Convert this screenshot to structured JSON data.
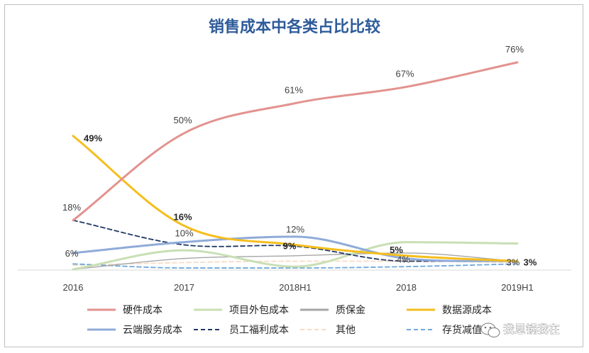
{
  "chart_data": {
    "type": "line",
    "title": "销售成本中各类占比比较",
    "categories": [
      "2016",
      "2017",
      "2018H1",
      "2018",
      "2019H1"
    ],
    "xlabel": "",
    "ylabel": "",
    "ylim": [
      0,
      0.8
    ],
    "grid": false,
    "legend_position": "bottom",
    "series": [
      {
        "name": "硬件成本",
        "values": [
          0.18,
          0.5,
          0.61,
          0.67,
          0.76
        ],
        "color": "#e3928f",
        "dash": "solid",
        "labels": [
          "18%",
          "50%",
          "61%",
          "67%",
          "76%"
        ],
        "bold": false
      },
      {
        "name": "项目外包成本",
        "values": [
          0.0,
          0.07,
          0.01,
          0.1,
          0.095
        ],
        "color": "#c8dfb4",
        "dash": "solid",
        "labels": null,
        "bold": false
      },
      {
        "name": "质保金",
        "values": [
          0.0,
          0.04,
          0.05,
          0.06,
          0.03
        ],
        "color": "#a6a6a6",
        "dash": "solid",
        "labels": null,
        "bold": false
      },
      {
        "name": "数据源成本",
        "values": [
          0.49,
          0.16,
          0.09,
          0.05,
          0.03
        ],
        "color": "#f5be1d",
        "dash": "solid",
        "labels": [
          "49%",
          "16%",
          "9%",
          "5%",
          "3%"
        ],
        "bold": true
      },
      {
        "name": "云端服务成本",
        "values": [
          0.06,
          0.1,
          0.12,
          0.04,
          0.03
        ],
        "color": "#8fabd8",
        "dash": "solid",
        "labels": [
          "6%",
          "10%",
          "12%",
          "4%",
          "3%"
        ],
        "bold": false
      },
      {
        "name": "员工福利成本",
        "values": [
          0.18,
          0.09,
          0.085,
          0.03,
          0.03
        ],
        "color": "#1f3864",
        "dash": "dashed",
        "labels": null,
        "bold": false
      },
      {
        "name": "其他",
        "values": [
          0.015,
          0.025,
          0.03,
          0.03,
          0.025
        ],
        "color": "#f7dcc5",
        "dash": "dashed",
        "labels": null,
        "bold": false
      },
      {
        "name": "存货减值",
        "values": [
          0.02,
          0.005,
          0.005,
          0.01,
          0.02
        ],
        "color": "#6fa8dc",
        "dash": "dashed",
        "labels": null,
        "bold": false
      }
    ]
  },
  "watermark": "我思锅我在",
  "icons": {
    "watermark": "wechat-icon"
  }
}
